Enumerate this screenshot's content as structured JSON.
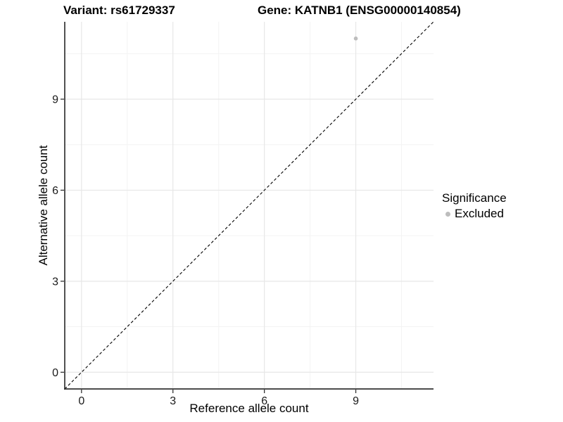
{
  "chart_data": {
    "type": "scatter",
    "titles": [
      "Variant: rs61729337",
      "Gene: KATNB1 (ENSG00000140854)"
    ],
    "xlabel": "Reference allele count",
    "ylabel": "Alternative allele count",
    "xlim": [
      -0.55,
      11.55
    ],
    "ylim": [
      -0.55,
      11.55
    ],
    "major_ticks": [
      0,
      3,
      6,
      9
    ],
    "minor_gridlines": [
      1.5,
      4.5,
      7.5,
      10.5
    ],
    "grid": true,
    "points": [
      {
        "x": 9,
        "y": 11,
        "series": "Excluded",
        "color": "#bdbdbd"
      }
    ],
    "reference_line": {
      "kind": "identity",
      "from": [
        -0.55,
        -0.55
      ],
      "to": [
        11.55,
        11.55
      ],
      "style": "dashed",
      "color": "#000000"
    },
    "legend": {
      "title": "Significance",
      "position": "right",
      "items": [
        {
          "label": "Excluded",
          "color": "#bdbdbd"
        }
      ]
    }
  },
  "colors": {
    "background": "#ffffff",
    "point": "#bdbdbd",
    "grid_major": "#e7e7e7",
    "grid_minor": "#f3f3f3",
    "axis": "#333333",
    "tick_label": "#1a1a1a",
    "reference_line": "#000000"
  }
}
